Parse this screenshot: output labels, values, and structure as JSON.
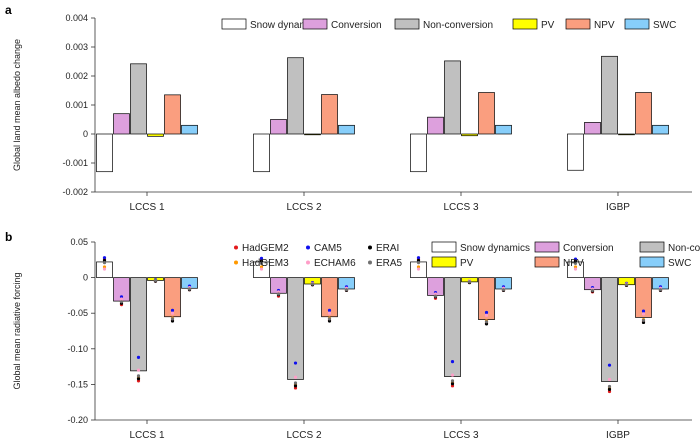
{
  "chart_data": [
    {
      "panel": "a",
      "type": "bar",
      "ylabel": "Global land mean albedo change",
      "ylim": [
        -0.002,
        0.004
      ],
      "yticks": [
        "-0.002",
        "-0.001",
        "0",
        "0.001",
        "0.002",
        "0.003",
        "0.004"
      ],
      "categories": [
        "LCCS 1",
        "LCCS 2",
        "LCCS 3",
        "IGBP"
      ],
      "series": [
        {
          "name": "Snow dynamics",
          "color": "#ffffff",
          "values": [
            -0.0013,
            -0.0013,
            -0.0013,
            -0.00125
          ]
        },
        {
          "name": "Conversion",
          "color": "#dda0dd",
          "values": [
            0.0007,
            0.0005,
            0.00058,
            0.0004
          ]
        },
        {
          "name": "Non-conversion",
          "color": "#c0c0c0",
          "values": [
            0.00242,
            0.00263,
            0.00252,
            0.00268
          ]
        },
        {
          "name": "PV",
          "color": "#ffff00",
          "values": [
            -8e-05,
            0.0,
            -6e-05,
            -2e-05
          ]
        },
        {
          "name": "NPV",
          "color": "#fa9e7f",
          "values": [
            0.00135,
            0.00136,
            0.00143,
            0.00143
          ]
        },
        {
          "name": "SWC",
          "color": "#87cefa",
          "values": [
            0.0003,
            0.0003,
            0.0003,
            0.0003
          ]
        }
      ]
    },
    {
      "panel": "b",
      "type": "bar",
      "ylabel": "Global mean radiative forcing",
      "ylim": [
        -0.2,
        0.05
      ],
      "yticks": [
        "-0.20",
        "-0.15",
        "-0.10",
        "-0.05",
        "0",
        "0.05"
      ],
      "categories": [
        "LCCS 1",
        "LCCS 2",
        "LCCS 3",
        "IGBP"
      ],
      "series": [
        {
          "name": "Snow dynamics",
          "color": "#ffffff",
          "values": [
            0.022,
            0.022,
            0.022,
            0.022
          ]
        },
        {
          "name": "Conversion",
          "color": "#dda0dd",
          "values": [
            -0.033,
            -0.022,
            -0.025,
            -0.017
          ]
        },
        {
          "name": "Non-conversion",
          "color": "#c0c0c0",
          "values": [
            -0.131,
            -0.143,
            -0.139,
            -0.146
          ]
        },
        {
          "name": "PV",
          "color": "#ffff00",
          "values": [
            -0.004,
            -0.009,
            -0.006,
            -0.01
          ]
        },
        {
          "name": "NPV",
          "color": "#fa9e7f",
          "values": [
            -0.055,
            -0.055,
            -0.059,
            -0.056
          ]
        },
        {
          "name": "SWC",
          "color": "#87cefa",
          "values": [
            -0.015,
            -0.016,
            -0.016,
            -0.016
          ]
        }
      ],
      "models": [
        {
          "name": "HadGEM2",
          "color": "#e31a1c"
        },
        {
          "name": "HadGEM3",
          "color": "#ff9900"
        },
        {
          "name": "CAM5",
          "color": "#1010ee"
        },
        {
          "name": "ECHAM6",
          "color": "#ff9ec8"
        },
        {
          "name": "ERAI",
          "color": "#000000"
        },
        {
          "name": "ERA5",
          "color": "#707070"
        }
      ],
      "model_points": {
        "Snow dynamics": {
          "HadGEM2": [
            0.026,
            0.025,
            0.026,
            0.024
          ],
          "HadGEM3": [
            0.015,
            0.015,
            0.015,
            0.015
          ],
          "CAM5": [
            0.028,
            0.027,
            0.028,
            0.026
          ],
          "ECHAM6": [
            0.012,
            0.012,
            0.012,
            0.012
          ],
          "ERAI": [
            0.024,
            0.023,
            0.024,
            0.023
          ],
          "ERA5": [
            0.021,
            0.02,
            0.021,
            0.02
          ]
        },
        "Conversion": {
          "HadGEM2": [
            -0.038,
            -0.026,
            -0.029,
            -0.02
          ],
          "HadGEM3": [
            -0.034,
            -0.023,
            -0.026,
            -0.018
          ],
          "CAM5": [
            -0.027,
            -0.018,
            -0.021,
            -0.014
          ],
          "ECHAM6": [
            -0.03,
            -0.02,
            -0.023,
            -0.016
          ],
          "ERAI": [
            -0.036,
            -0.024,
            -0.027,
            -0.019
          ],
          "ERA5": [
            -0.034,
            -0.023,
            -0.026,
            -0.018
          ]
        },
        "Non-conversion": {
          "HadGEM2": [
            -0.145,
            -0.155,
            -0.152,
            -0.16
          ],
          "HadGEM3": [
            -0.14,
            -0.15,
            -0.147,
            -0.155
          ],
          "CAM5": [
            -0.112,
            -0.12,
            -0.118,
            -0.123
          ],
          "ECHAM6": [
            -0.13,
            -0.14,
            -0.137,
            -0.143
          ],
          "ERAI": [
            -0.142,
            -0.152,
            -0.149,
            -0.157
          ],
          "ERA5": [
            -0.138,
            -0.148,
            -0.145,
            -0.153
          ]
        },
        "PV": {
          "HadGEM2": [
            -0.005,
            -0.01,
            -0.007,
            -0.011
          ],
          "HadGEM3": [
            -0.004,
            -0.009,
            -0.006,
            -0.01
          ],
          "CAM5": [
            -0.003,
            -0.007,
            -0.005,
            -0.008
          ],
          "ECHAM6": [
            -0.004,
            -0.008,
            -0.005,
            -0.009
          ],
          "ERAI": [
            -0.005,
            -0.01,
            -0.007,
            -0.011
          ],
          "ERA5": [
            -0.004,
            -0.009,
            -0.006,
            -0.01
          ]
        },
        "NPV": {
          "HadGEM2": [
            -0.06,
            -0.06,
            -0.064,
            -0.062
          ],
          "HadGEM3": [
            -0.057,
            -0.057,
            -0.061,
            -0.059
          ],
          "CAM5": [
            -0.046,
            -0.046,
            -0.049,
            -0.047
          ],
          "ECHAM6": [
            -0.05,
            -0.05,
            -0.053,
            -0.051
          ],
          "ERAI": [
            -0.061,
            -0.061,
            -0.065,
            -0.063
          ],
          "ERA5": [
            -0.058,
            -0.058,
            -0.062,
            -0.06
          ]
        },
        "SWC": {
          "HadGEM2": [
            -0.017,
            -0.018,
            -0.018,
            -0.018
          ],
          "HadGEM3": [
            -0.016,
            -0.017,
            -0.017,
            -0.017
          ],
          "CAM5": [
            -0.012,
            -0.013,
            -0.013,
            -0.013
          ],
          "ECHAM6": [
            -0.014,
            -0.015,
            -0.015,
            -0.015
          ],
          "ERAI": [
            -0.017,
            -0.018,
            -0.018,
            -0.018
          ],
          "ERA5": [
            -0.016,
            -0.017,
            -0.017,
            -0.017
          ]
        }
      }
    }
  ]
}
